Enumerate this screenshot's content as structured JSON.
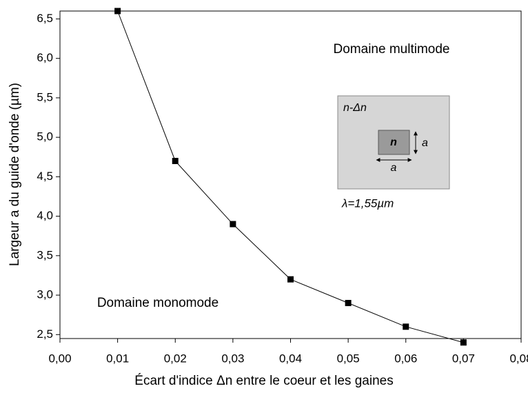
{
  "chart_data": {
    "type": "line",
    "x_label": "Écart d'indice Δn entre le coeur et les gaines",
    "y_label": "Largeur a du guide d'onde (µm)",
    "x": [
      0.01,
      0.02,
      0.03,
      0.04,
      0.05,
      0.06,
      0.07
    ],
    "series": [
      {
        "name": null,
        "color": "#000000",
        "values": [
          6.6,
          4.7,
          3.9,
          3.2,
          2.9,
          2.6,
          2.4
        ]
      }
    ],
    "xlim": [
      0,
      0.08
    ],
    "xticks": [
      {
        "value": 0,
        "label": "0,00"
      },
      {
        "value": 0.01,
        "label": "0,01"
      },
      {
        "value": 0.02,
        "label": "0,02"
      },
      {
        "value": 0.03,
        "label": "0,03"
      },
      {
        "value": 0.04,
        "label": "0,04"
      },
      {
        "value": 0.05,
        "label": "0,05"
      },
      {
        "value": 0.06,
        "label": "0,06"
      },
      {
        "value": 0.07,
        "label": "0,07"
      },
      {
        "value": 0.08,
        "label": "0,08"
      }
    ],
    "ylim": [
      2.45,
      6.6
    ],
    "yticks": [
      {
        "value": 2.5,
        "label": "2,5"
      },
      {
        "value": 3,
        "label": "3,0"
      },
      {
        "value": 3.5,
        "label": "3,5"
      },
      {
        "value": 4,
        "label": "4,0"
      },
      {
        "value": 4.5,
        "label": "4,5"
      },
      {
        "value": 5,
        "label": "5,0"
      },
      {
        "value": 5.5,
        "label": "5,5"
      },
      {
        "value": 6,
        "label": "6,0"
      },
      {
        "value": 6.5,
        "label": "6,5"
      }
    ],
    "grid": false,
    "annotations": [
      "Domaine multimode",
      "Domaine monomode"
    ],
    "inset": {
      "cladding_label": "n-Δn",
      "core_label": "n",
      "height_label": "a",
      "width_label": "a",
      "wavelength_label": "λ=1,55µm"
    }
  }
}
